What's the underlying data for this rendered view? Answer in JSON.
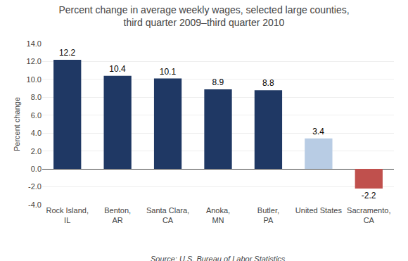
{
  "chart_data": {
    "type": "bar",
    "title": "Percent change in average weekly wages, selected large counties,\nthird quarter 2009–third quarter 2010",
    "ylabel": "Percent change",
    "categories": [
      "Rock Island,\nIL",
      "Benton,\nAR",
      "Santa Clara,\nCA",
      "Anoka,\nMN",
      "Butler,\nPA",
      "United States",
      "Sacramento,\nCA"
    ],
    "values": [
      12.2,
      10.4,
      10.1,
      8.9,
      8.8,
      3.4,
      -2.2
    ],
    "colors": [
      "#1F3864",
      "#1F3864",
      "#1F3864",
      "#1F3864",
      "#1F3864",
      "#B8CCE4",
      "#C0504D"
    ],
    "ylim": [
      -4.0,
      14.0
    ],
    "yticks": [
      {
        "value": -4.0,
        "label": "-4.0"
      },
      {
        "value": -2.0,
        "label": "-2.0"
      },
      {
        "value": 0.0,
        "label": "0.0"
      },
      {
        "value": 2.0,
        "label": "2.0"
      },
      {
        "value": 4.0,
        "label": "4.0"
      },
      {
        "value": 6.0,
        "label": "6.0"
      },
      {
        "value": 8.0,
        "label": "8.0"
      },
      {
        "value": 10.0,
        "label": "10.0"
      },
      {
        "value": 12.0,
        "label": "12.0"
      },
      {
        "value": 14.0,
        "label": "14.0"
      }
    ],
    "grid": true,
    "data_labels": true,
    "annotations": [
      "Source: U.S. Bureau of Labor Statistics"
    ]
  }
}
